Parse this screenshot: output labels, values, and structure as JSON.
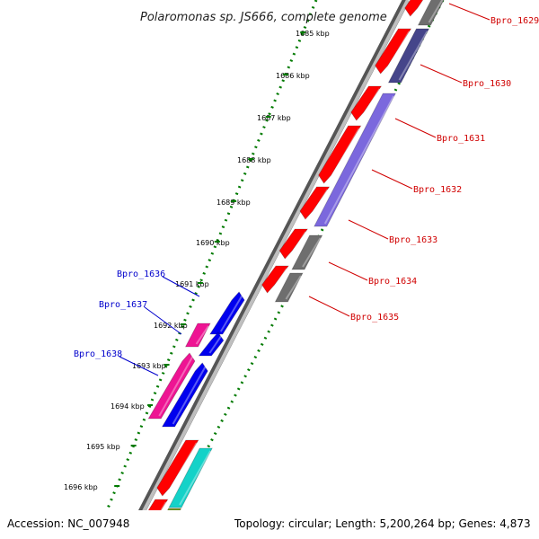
{
  "title": "Polaromonas sp. JS666, complete genome",
  "ticks": [
    "1685 kbp",
    "1686 kbp",
    "1687 kbp",
    "1688 kbp",
    "1689 kbp",
    "1690 kbp",
    "1691 kbp",
    "1692 kbp",
    "1693 kbp",
    "1694 kbp",
    "1695 kbp",
    "1696 kbp"
  ],
  "genes_right": [
    "Bpro_1629",
    "Bpro_1630",
    "Bpro_1631",
    "Bpro_1632",
    "Bpro_1633",
    "Bpro_1634",
    "Bpro_1635"
  ],
  "genes_left": [
    "Bpro_1636",
    "Bpro_1637",
    "Bpro_1638"
  ],
  "footer": {
    "accession": "Accession: NC_007948",
    "topology": "Topology: circular; Length: 5,200,264 bp; Genes: 4,873"
  },
  "colors": {
    "red": "#ff0000",
    "gray": "#6e6e6e",
    "navy": "#45458a",
    "lavender": "#7b68dd",
    "blue": "#0000ee",
    "pink": "#ee1493",
    "cyan": "#14d2c8",
    "olive": "#6f8f1f",
    "tick_green": "#007a00",
    "label_red": "#d00000",
    "label_blue": "#0000cc"
  }
}
